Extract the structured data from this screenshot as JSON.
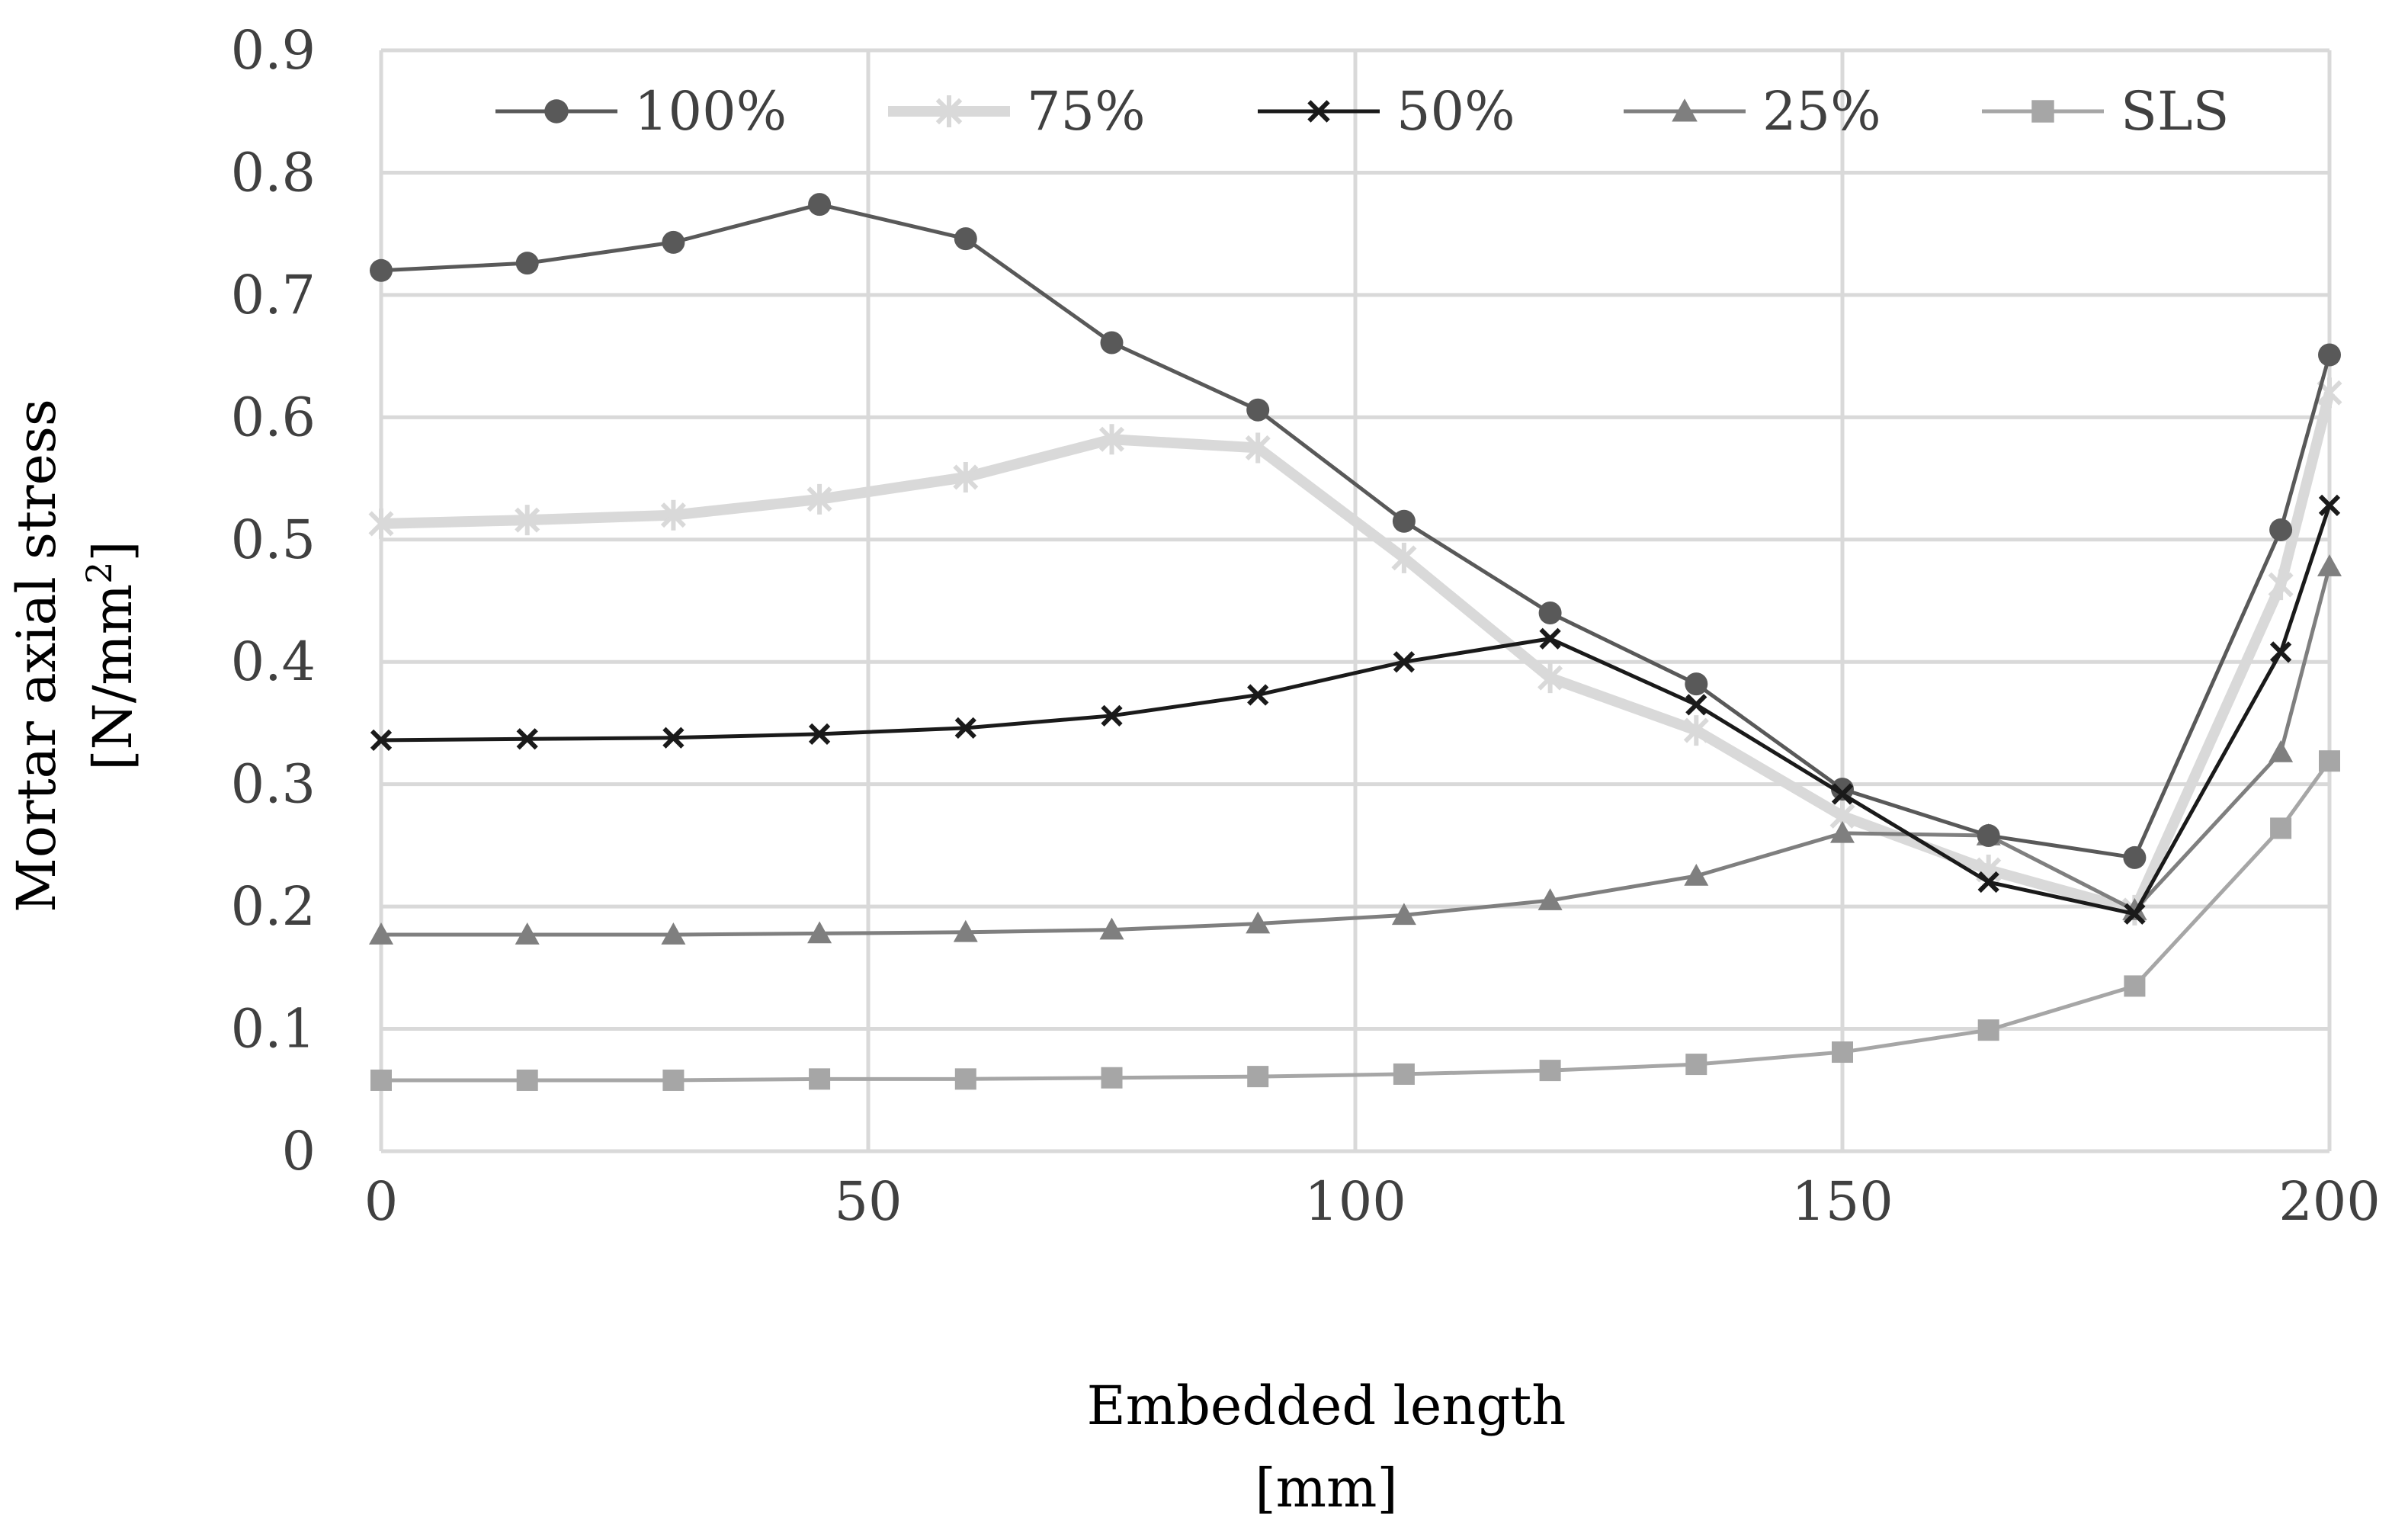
{
  "chart_data": {
    "type": "line",
    "title": "",
    "xlabel": "Embedded length",
    "xlabel_unit": "[mm]",
    "ylabel": "Mortar axial stress",
    "ylabel_unit_prefix": "[N/mm",
    "ylabel_unit_sup": "2",
    "ylabel_unit_suffix": "]",
    "xlim": [
      0,
      200
    ],
    "ylim": [
      0,
      0.9
    ],
    "x_ticks": [
      0,
      50,
      100,
      150,
      200
    ],
    "y_ticks": [
      0,
      0.1,
      0.2,
      0.3,
      0.4,
      0.5,
      0.6,
      0.7,
      0.8,
      0.9
    ],
    "y_tick_labels": [
      "0",
      "0.1",
      "0.2",
      "0.3",
      "0.4",
      "0.5",
      "0.6",
      "0.7",
      "0.8",
      "0.9"
    ],
    "grid": true,
    "legend_position": "top",
    "x": [
      0,
      15,
      30,
      45,
      60,
      75,
      90,
      105,
      120,
      135,
      150,
      165,
      180,
      195,
      200
    ],
    "series": [
      {
        "name": "100%",
        "marker": "circle",
        "color": "#595959",
        "values": [
          0.72,
          0.726,
          0.743,
          0.774,
          0.746,
          0.661,
          0.606,
          0.515,
          0.44,
          0.382,
          0.296,
          0.258,
          0.24,
          0.508,
          0.651
        ]
      },
      {
        "name": "75%",
        "marker": "star",
        "color": "#d9d9d9",
        "values": [
          0.513,
          0.516,
          0.52,
          0.533,
          0.551,
          0.582,
          0.575,
          0.485,
          0.387,
          0.344,
          0.274,
          0.23,
          0.197,
          0.463,
          0.62
        ]
      },
      {
        "name": "50%",
        "marker": "x",
        "color": "#1a1a1a",
        "values": [
          0.336,
          0.337,
          0.338,
          0.341,
          0.346,
          0.356,
          0.373,
          0.4,
          0.419,
          0.365,
          0.292,
          0.22,
          0.194,
          0.408,
          0.528
        ]
      },
      {
        "name": "25%",
        "marker": "triangle",
        "color": "#7f7f7f",
        "values": [
          0.177,
          0.177,
          0.177,
          0.178,
          0.179,
          0.181,
          0.186,
          0.193,
          0.205,
          0.225,
          0.26,
          0.258,
          0.197,
          0.326,
          0.478
        ]
      },
      {
        "name": "SLS",
        "marker": "square",
        "color": "#a6a6a6",
        "values": [
          0.058,
          0.058,
          0.058,
          0.059,
          0.059,
          0.06,
          0.061,
          0.063,
          0.066,
          0.071,
          0.081,
          0.099,
          0.135,
          0.264,
          0.319
        ]
      }
    ]
  }
}
